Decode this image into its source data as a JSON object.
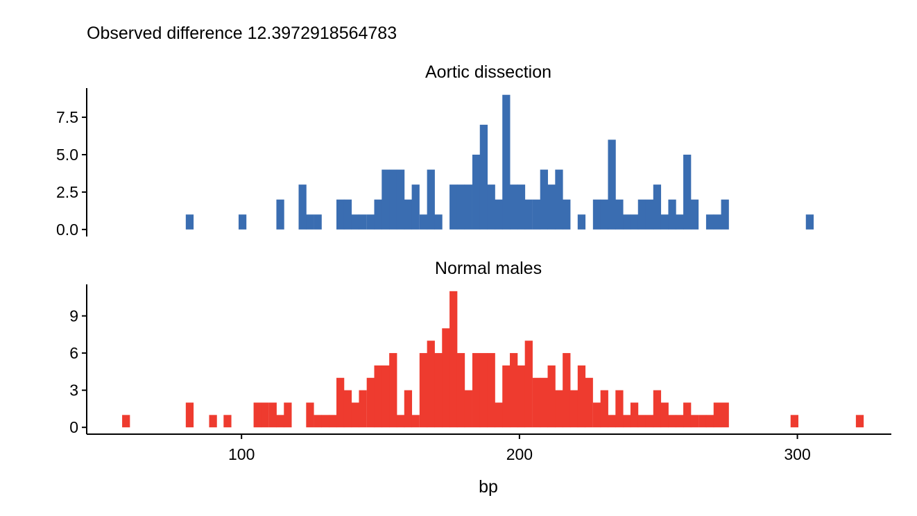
{
  "chart_data": {
    "type": "bar",
    "title": "Observed difference 12.3972918564783",
    "xlabel": "bp",
    "ylabel": "",
    "xlim": [
      44.3,
      333.8
    ],
    "x_ticks": [
      100,
      200,
      300
    ],
    "x_tick_labels": [
      "100",
      "200",
      "300"
    ],
    "bin_width": 2.71,
    "grid": false,
    "legend": "none",
    "facets": [
      {
        "name": "Aortic dissection",
        "color": "#3A6DB1",
        "ylim": [
          -0.47,
          9.45
        ],
        "y_ticks": [
          0,
          2.5,
          5,
          7.5
        ],
        "y_tick_labels": [
          "0.0",
          "2.5",
          "5.0",
          "7.5"
        ],
        "bins": [
          {
            "x": 81.3,
            "y": 1
          },
          {
            "x": 100.3,
            "y": 1
          },
          {
            "x": 113.9,
            "y": 2
          },
          {
            "x": 121.9,
            "y": 3
          },
          {
            "x": 124.6,
            "y": 1
          },
          {
            "x": 127.4,
            "y": 1
          },
          {
            "x": 135.5,
            "y": 2
          },
          {
            "x": 138.2,
            "y": 2
          },
          {
            "x": 140.9,
            "y": 1
          },
          {
            "x": 143.6,
            "y": 1
          },
          {
            "x": 146.4,
            "y": 1
          },
          {
            "x": 149.1,
            "y": 2
          },
          {
            "x": 151.8,
            "y": 4
          },
          {
            "x": 154.5,
            "y": 4
          },
          {
            "x": 157.2,
            "y": 4
          },
          {
            "x": 159.9,
            "y": 2
          },
          {
            "x": 162.6,
            "y": 3
          },
          {
            "x": 165.4,
            "y": 1
          },
          {
            "x": 168.1,
            "y": 4
          },
          {
            "x": 170.8,
            "y": 1
          },
          {
            "x": 176.2,
            "y": 3
          },
          {
            "x": 178.9,
            "y": 3
          },
          {
            "x": 181.6,
            "y": 3
          },
          {
            "x": 184.4,
            "y": 5
          },
          {
            "x": 187.1,
            "y": 7
          },
          {
            "x": 189.8,
            "y": 3
          },
          {
            "x": 192.5,
            "y": 2
          },
          {
            "x": 195.2,
            "y": 9
          },
          {
            "x": 197.9,
            "y": 3
          },
          {
            "x": 200.6,
            "y": 3
          },
          {
            "x": 203.3,
            "y": 2
          },
          {
            "x": 206.1,
            "y": 2
          },
          {
            "x": 208.8,
            "y": 4
          },
          {
            "x": 211.5,
            "y": 3
          },
          {
            "x": 214.2,
            "y": 4
          },
          {
            "x": 216.9,
            "y": 2
          },
          {
            "x": 222.3,
            "y": 1
          },
          {
            "x": 227.8,
            "y": 2
          },
          {
            "x": 230.5,
            "y": 2
          },
          {
            "x": 233.2,
            "y": 6
          },
          {
            "x": 235.9,
            "y": 2
          },
          {
            "x": 238.6,
            "y": 1
          },
          {
            "x": 241.3,
            "y": 1
          },
          {
            "x": 244.0,
            "y": 2
          },
          {
            "x": 246.8,
            "y": 2
          },
          {
            "x": 249.5,
            "y": 3
          },
          {
            "x": 252.2,
            "y": 1
          },
          {
            "x": 254.9,
            "y": 2
          },
          {
            "x": 257.6,
            "y": 1
          },
          {
            "x": 260.3,
            "y": 5
          },
          {
            "x": 263.0,
            "y": 2
          },
          {
            "x": 268.5,
            "y": 1
          },
          {
            "x": 271.2,
            "y": 1
          },
          {
            "x": 273.9,
            "y": 2
          },
          {
            "x": 304.4,
            "y": 1
          }
        ]
      },
      {
        "name": "Normal males",
        "color": "#EE3B2F",
        "ylim": [
          -0.55,
          11.55
        ],
        "y_ticks": [
          0,
          3,
          6,
          9
        ],
        "y_tick_labels": [
          "0",
          "3",
          "6",
          "9"
        ],
        "bins": [
          {
            "x": 58.4,
            "y": 1
          },
          {
            "x": 81.3,
            "y": 2
          },
          {
            "x": 89.7,
            "y": 1
          },
          {
            "x": 94.9,
            "y": 1
          },
          {
            "x": 105.7,
            "y": 2
          },
          {
            "x": 108.4,
            "y": 2
          },
          {
            "x": 111.2,
            "y": 2
          },
          {
            "x": 113.9,
            "y": 1
          },
          {
            "x": 116.6,
            "y": 2
          },
          {
            "x": 124.6,
            "y": 2
          },
          {
            "x": 127.4,
            "y": 1
          },
          {
            "x": 130.1,
            "y": 1
          },
          {
            "x": 132.8,
            "y": 1
          },
          {
            "x": 135.5,
            "y": 4
          },
          {
            "x": 138.2,
            "y": 3
          },
          {
            "x": 140.9,
            "y": 2
          },
          {
            "x": 143.6,
            "y": 3
          },
          {
            "x": 146.4,
            "y": 4
          },
          {
            "x": 149.1,
            "y": 5
          },
          {
            "x": 151.8,
            "y": 5
          },
          {
            "x": 154.5,
            "y": 6
          },
          {
            "x": 157.2,
            "y": 1
          },
          {
            "x": 159.9,
            "y": 3
          },
          {
            "x": 162.6,
            "y": 1
          },
          {
            "x": 165.4,
            "y": 6
          },
          {
            "x": 168.1,
            "y": 7
          },
          {
            "x": 170.8,
            "y": 6
          },
          {
            "x": 173.5,
            "y": 8
          },
          {
            "x": 176.2,
            "y": 11
          },
          {
            "x": 178.9,
            "y": 6
          },
          {
            "x": 181.6,
            "y": 3
          },
          {
            "x": 184.4,
            "y": 6
          },
          {
            "x": 187.1,
            "y": 6
          },
          {
            "x": 189.8,
            "y": 6
          },
          {
            "x": 192.5,
            "y": 2
          },
          {
            "x": 195.2,
            "y": 5
          },
          {
            "x": 197.9,
            "y": 6
          },
          {
            "x": 200.6,
            "y": 5
          },
          {
            "x": 203.3,
            "y": 7
          },
          {
            "x": 206.1,
            "y": 4
          },
          {
            "x": 208.8,
            "y": 4
          },
          {
            "x": 211.5,
            "y": 5
          },
          {
            "x": 214.2,
            "y": 3
          },
          {
            "x": 216.9,
            "y": 6
          },
          {
            "x": 219.6,
            "y": 3
          },
          {
            "x": 222.3,
            "y": 5
          },
          {
            "x": 225.0,
            "y": 4
          },
          {
            "x": 227.8,
            "y": 2
          },
          {
            "x": 230.5,
            "y": 3
          },
          {
            "x": 233.2,
            "y": 1
          },
          {
            "x": 235.9,
            "y": 3
          },
          {
            "x": 238.6,
            "y": 1
          },
          {
            "x": 241.3,
            "y": 2
          },
          {
            "x": 244.0,
            "y": 1
          },
          {
            "x": 246.8,
            "y": 1
          },
          {
            "x": 249.5,
            "y": 3
          },
          {
            "x": 252.2,
            "y": 2
          },
          {
            "x": 254.9,
            "y": 1
          },
          {
            "x": 257.6,
            "y": 1
          },
          {
            "x": 260.3,
            "y": 2
          },
          {
            "x": 263.0,
            "y": 1
          },
          {
            "x": 265.8,
            "y": 1
          },
          {
            "x": 268.5,
            "y": 1
          },
          {
            "x": 271.2,
            "y": 2
          },
          {
            "x": 273.9,
            "y": 2
          },
          {
            "x": 298.9,
            "y": 1
          },
          {
            "x": 322.4,
            "y": 1
          }
        ]
      }
    ]
  }
}
